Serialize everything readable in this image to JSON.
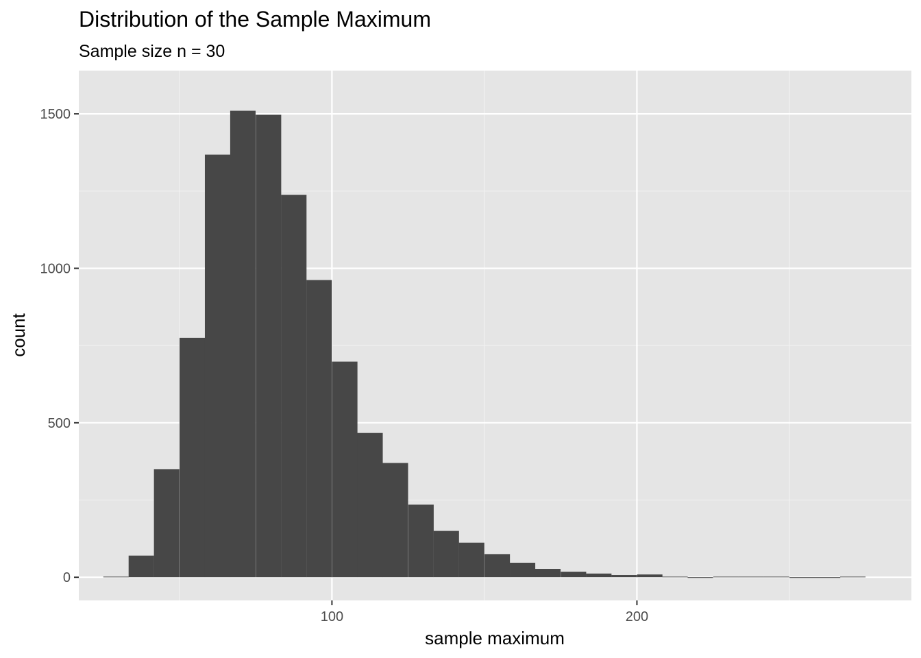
{
  "chart_data": {
    "type": "bar",
    "title": "Distribution of the Sample Maximum",
    "subtitle": "Sample size n = 30",
    "xlabel": "sample maximum",
    "ylabel": "count",
    "xlim": [
      17,
      290
    ],
    "ylim": [
      -75,
      1640
    ],
    "xticks": [
      100,
      200
    ],
    "yticks": [
      0,
      500,
      1000,
      1500
    ],
    "x_minor_grid": [
      50,
      150,
      250
    ],
    "y_minor_grid": [
      250,
      750,
      1250
    ],
    "grid": true,
    "bin_width": 8.33,
    "bins": [
      {
        "x": 29.2,
        "count": 2
      },
      {
        "x": 37.5,
        "count": 70
      },
      {
        "x": 45.8,
        "count": 350
      },
      {
        "x": 54.2,
        "count": 775
      },
      {
        "x": 62.5,
        "count": 1368
      },
      {
        "x": 70.8,
        "count": 1510
      },
      {
        "x": 79.2,
        "count": 1497
      },
      {
        "x": 87.5,
        "count": 1238
      },
      {
        "x": 95.8,
        "count": 962
      },
      {
        "x": 104.2,
        "count": 698
      },
      {
        "x": 112.5,
        "count": 467
      },
      {
        "x": 120.8,
        "count": 370
      },
      {
        "x": 129.2,
        "count": 235
      },
      {
        "x": 137.5,
        "count": 150
      },
      {
        "x": 145.8,
        "count": 112
      },
      {
        "x": 154.2,
        "count": 75
      },
      {
        "x": 162.5,
        "count": 47
      },
      {
        "x": 170.8,
        "count": 27
      },
      {
        "x": 179.2,
        "count": 18
      },
      {
        "x": 187.5,
        "count": 12
      },
      {
        "x": 195.8,
        "count": 7
      },
      {
        "x": 204.2,
        "count": 9
      },
      {
        "x": 212.5,
        "count": 2
      },
      {
        "x": 220.8,
        "count": 0
      },
      {
        "x": 229.2,
        "count": 2
      },
      {
        "x": 237.5,
        "count": 2
      },
      {
        "x": 245.8,
        "count": 2
      },
      {
        "x": 254.2,
        "count": 0
      },
      {
        "x": 262.5,
        "count": 0
      },
      {
        "x": 270.8,
        "count": 2
      }
    ]
  },
  "colors": {
    "panel_background": "#e5e5e5",
    "grid_major": "#ffffff",
    "grid_minor": "#f2f2f2",
    "bar_fill": "#474747",
    "tick_text": "#4d4d4d",
    "tick_mark": "#333333"
  }
}
